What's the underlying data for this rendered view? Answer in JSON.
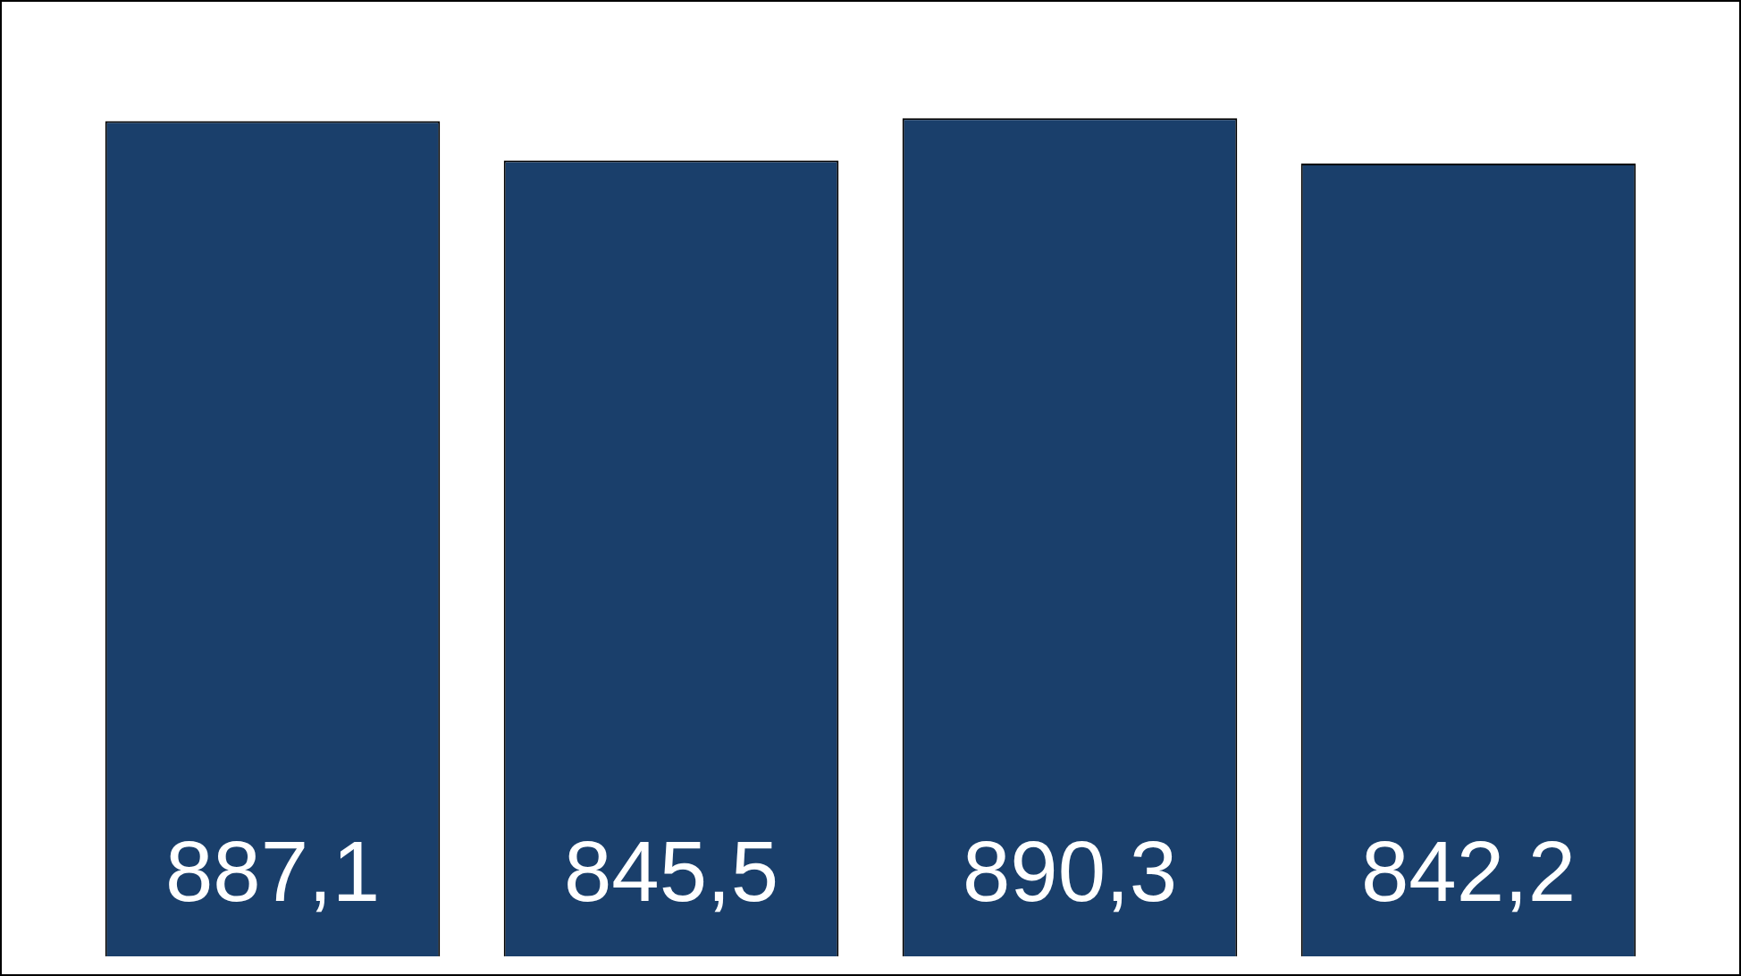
{
  "chart_data": {
    "type": "bar",
    "categories": [
      null,
      null,
      null,
      null
    ],
    "values": [
      887.1,
      845.5,
      890.3,
      842.2
    ],
    "colors": [
      "#1a3f6b",
      "#1a3f6b",
      "#1a3f6b",
      "#1a3f6b"
    ],
    "value_labels": [
      "887,1",
      "845,5",
      "890,3",
      "842,2"
    ],
    "legend": false
  }
}
